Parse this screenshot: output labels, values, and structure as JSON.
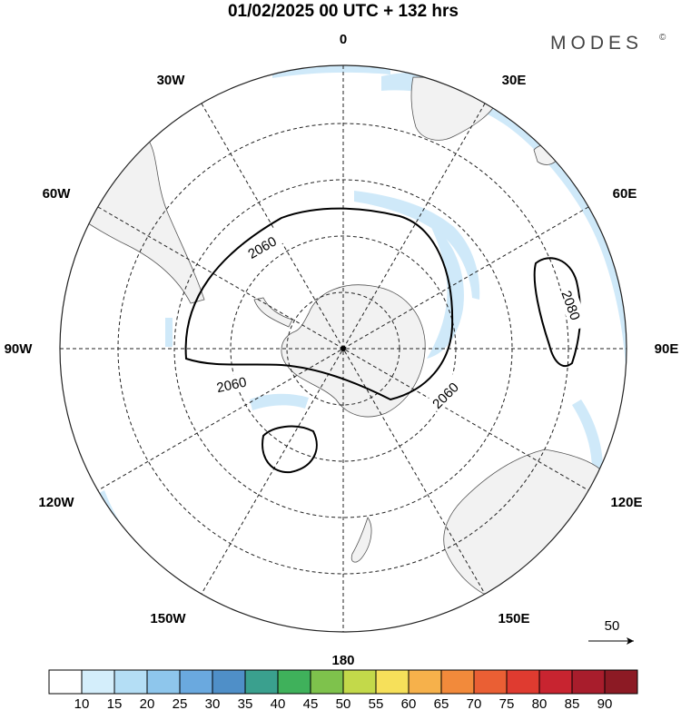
{
  "title": "01/02/2025  00 UTC  + 132 hrs",
  "brand": "MODES",
  "brand_mark": "©",
  "longitude_labels": {
    "lon_0": "0",
    "lon_30e": "30E",
    "lon_60e": "60E",
    "lon_90e": "90E",
    "lon_120e": "120E",
    "lon_150e": "150E",
    "lon_180": "180",
    "lon_150w": "150W",
    "lon_120w": "120W",
    "lon_90w": "90W",
    "lon_60w": "60W",
    "lon_30w": "30W"
  },
  "contours": [
    {
      "label": "2060"
    },
    {
      "label": "2060"
    },
    {
      "label": "2060"
    },
    {
      "label": "2080"
    }
  ],
  "vector_scale": {
    "label": "50"
  },
  "colorbar": {
    "ticks": [
      "10",
      "15",
      "20",
      "25",
      "30",
      "35",
      "40",
      "45",
      "50",
      "55",
      "60",
      "65",
      "70",
      "75",
      "80",
      "85",
      "90"
    ],
    "colors": [
      "#ffffff",
      "#d4eefb",
      "#b4def5",
      "#8ec6ec",
      "#6aa9df",
      "#4f8fc8",
      "#3aa08e",
      "#3fb15b",
      "#7ec24c",
      "#c3d94a",
      "#f6e05a",
      "#f6b14b",
      "#f28a3b",
      "#ea5f34",
      "#df3b30",
      "#c82430",
      "#a81d2c",
      "#8c1a24"
    ]
  },
  "colors": {
    "land": "#f2f2f2",
    "coast": "#555555",
    "jet": "#cfe9f9",
    "contour": "#000000",
    "grid": "#222222"
  }
}
